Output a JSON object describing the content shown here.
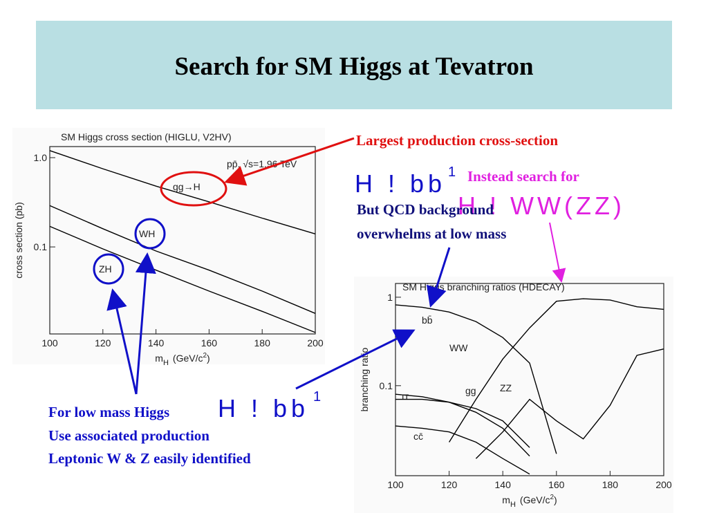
{
  "title": "Search for SM Higgs at Tevatron",
  "annotations": {
    "largest": "Largest production cross-section",
    "top_formula": "H ! bb",
    "top_formula_sup": "1",
    "instead": "Instead search for",
    "ww_formula": "H ! WW(ZZ)",
    "qcd": [
      "But QCD background",
      "overwhelms at low mass"
    ],
    "low_mass": "For low mass Higgs",
    "low_formula": "H ! bb",
    "low_formula_sup": "1",
    "assoc": [
      "Use associated production",
      "Leptonic W & Z easily identified"
    ]
  },
  "chart_data": [
    {
      "type": "line",
      "title": "SM Higgs cross section (HIGLU, V2HV)",
      "note": "pp̄, √s=1.96 TeV",
      "ylabel": "cross section (pb)",
      "xlabel": {
        "main": "m",
        "sub": "H",
        "unit": "(GeV/c",
        "sup": "2",
        "close": ")"
      },
      "xlim": [
        100,
        200
      ],
      "xticks": [
        100,
        120,
        140,
        160,
        180,
        200
      ],
      "ylim": [
        0.0106,
        1.33
      ],
      "yticks": [
        {
          "value": 1,
          "label": "1.0"
        },
        0.1
      ],
      "log_y": true,
      "color": "#000000",
      "x": [
        100,
        120,
        140,
        160,
        180,
        200
      ],
      "series": [
        {
          "name": "gg→H",
          "values": [
            1.2,
            0.75,
            0.48,
            0.32,
            0.21,
            0.14
          ]
        },
        {
          "name": "WH",
          "values": [
            0.29,
            0.16,
            0.09,
            0.055,
            0.032,
            0.018
          ]
        },
        {
          "name": "ZH",
          "values": [
            0.17,
            0.095,
            0.055,
            0.032,
            0.019,
            0.011
          ]
        }
      ]
    },
    {
      "type": "line",
      "title": "SM Higgs branching ratios (HDECAY)",
      "ylabel": "branching ratio",
      "xlabel": {
        "main": "m",
        "sub": "H",
        "unit": "(GeV/c",
        "sup": "2",
        "close": ")"
      },
      "xlim": [
        100,
        200
      ],
      "xticks": [
        100,
        120,
        140,
        160,
        180,
        200
      ],
      "ylim": [
        0.0096,
        1.43
      ],
      "yticks": [
        1,
        0.1
      ],
      "log_y": true,
      "color": "#000000",
      "x": [
        100,
        110,
        120,
        130,
        140,
        150,
        160,
        170,
        180,
        190,
        200
      ],
      "series": [
        {
          "name": "bb̄",
          "values": [
            0.82,
            0.77,
            0.68,
            0.53,
            0.35,
            0.18,
            0.017,
            null,
            null,
            null,
            null
          ]
        },
        {
          "name": "WW",
          "values": [
            null,
            null,
            0.023,
            0.07,
            0.2,
            0.45,
            0.9,
            0.96,
            0.93,
            0.78,
            0.73
          ]
        },
        {
          "name": "ττ",
          "values": [
            0.08,
            0.075,
            0.065,
            0.05,
            0.033,
            0.016,
            null,
            null,
            null,
            null,
            null
          ]
        },
        {
          "name": "gg",
          "values": [
            0.07,
            0.07,
            0.065,
            0.055,
            0.04,
            0.02,
            null,
            null,
            null,
            null,
            null
          ]
        },
        {
          "name": "ZZ",
          "values": [
            null,
            null,
            null,
            0.015,
            0.03,
            0.07,
            0.04,
            0.025,
            0.06,
            0.22,
            0.26
          ]
        },
        {
          "name": "cc̄",
          "values": [
            0.035,
            0.033,
            0.03,
            0.023,
            0.015,
            0.01,
            null,
            null,
            null,
            null,
            null
          ]
        }
      ]
    }
  ]
}
